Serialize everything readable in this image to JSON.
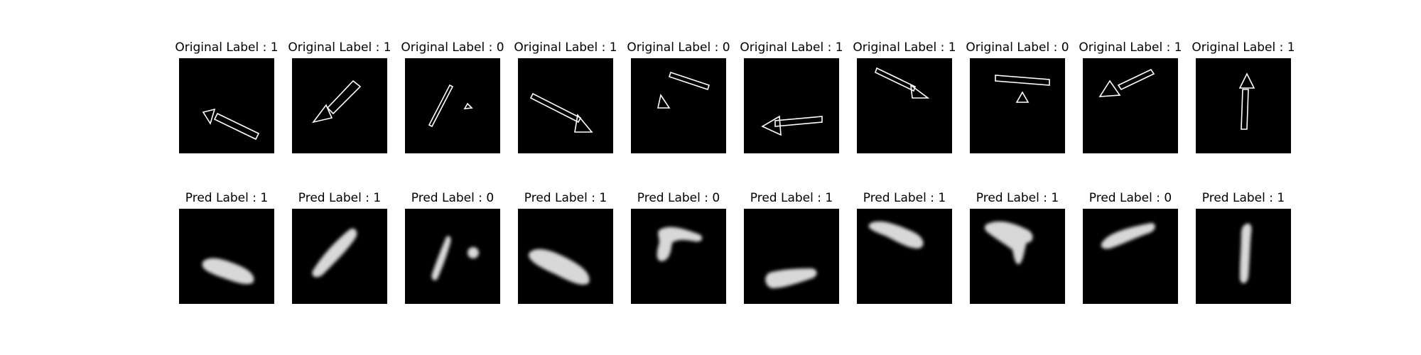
{
  "figure": {
    "rows": [
      {
        "name": "original",
        "titles": [
          "Original Label : 1",
          "Original Label : 1",
          "Original Label : 0",
          "Original Label : 1",
          "Original Label : 0",
          "Original Label : 1",
          "Original Label : 1",
          "Original Label : 0",
          "Original Label : 1",
          "Original Label : 1"
        ]
      },
      {
        "name": "pred",
        "titles": [
          "Pred Label : 1",
          "Pred Label : 1",
          "Pred Label : 0",
          "Pred Label : 1",
          "Pred Label : 0",
          "Pred Label : 1",
          "Pred Label : 1",
          "Pred Label : 1",
          "Pred Label : 0",
          "Pred Label : 1"
        ]
      }
    ],
    "colors": {
      "panel_background": "#000000",
      "shape_stroke": "#ffffff",
      "page_background": "#ffffff"
    }
  }
}
